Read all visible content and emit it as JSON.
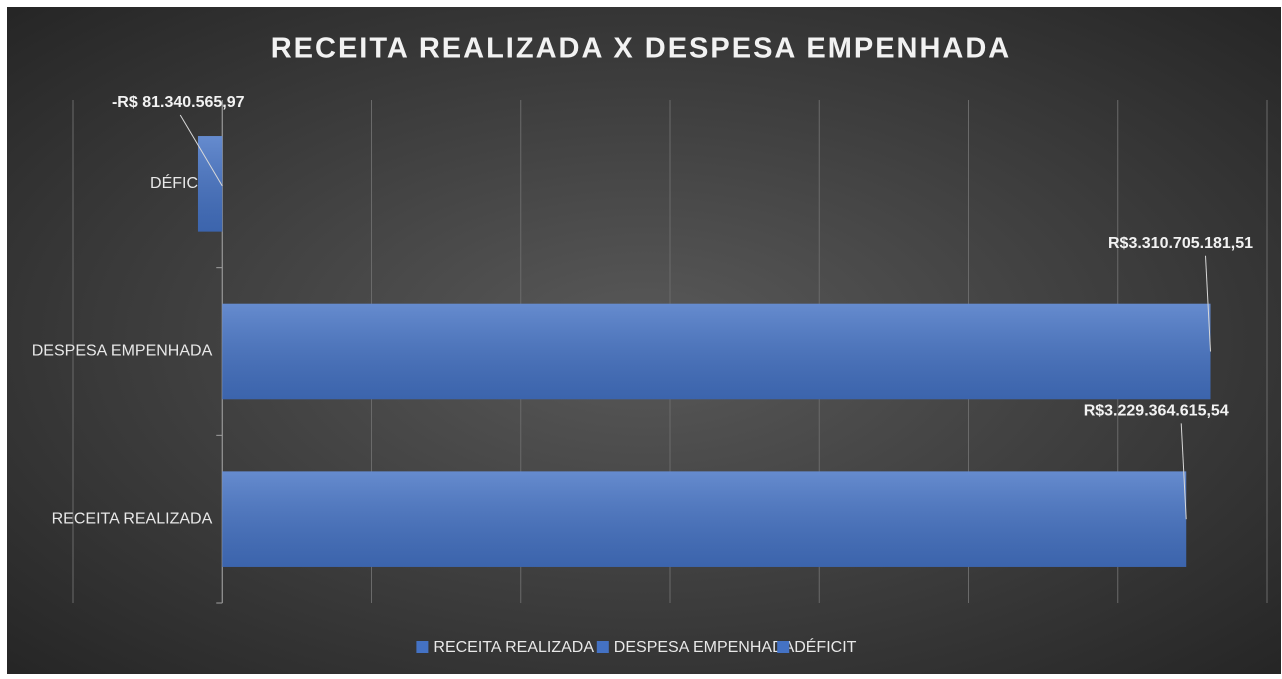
{
  "chart_data": {
    "type": "barh",
    "title": "RECEITA REALIZADA X DESPESA EMPENHADA",
    "categories": [
      "RECEITA REALIZADA",
      "DESPESA EMPENHADA",
      "DÉFICIT"
    ],
    "values": [
      3229364615.54,
      3310705181.51,
      -81340565.97
    ],
    "value_labels": [
      "R$3.229.364.615,54",
      "R$3.310.705.181,51",
      "-R$ 81.340.565,97"
    ],
    "color": "#4472c4",
    "xlim": [
      -500000000,
      3500000000
    ],
    "xticks": [
      -500000000,
      0,
      500000000,
      1000000000,
      1500000000,
      2000000000,
      2500000000,
      3000000000,
      3500000000
    ],
    "grid": true,
    "legend": "bottom"
  }
}
